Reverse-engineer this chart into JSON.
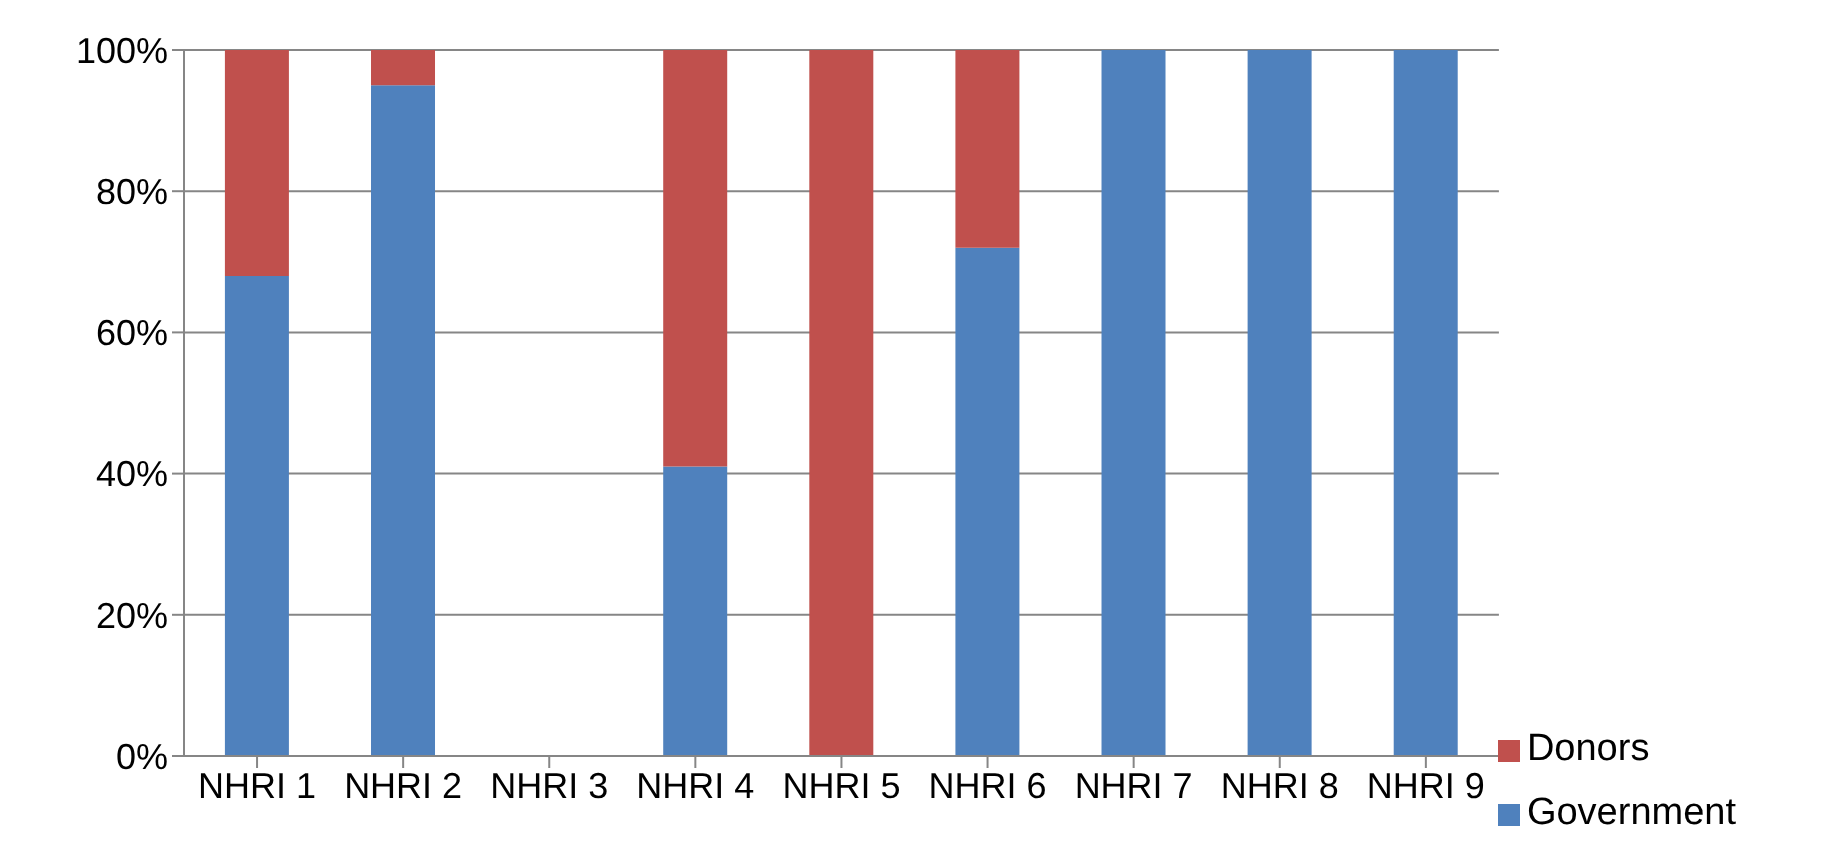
{
  "chart_data": {
    "type": "bar",
    "stacked": true,
    "categories": [
      "NHRI 1",
      "NHRI 2",
      "NHRI 3",
      "NHRI 4",
      "NHRI 5",
      "NHRI 6",
      "NHRI 7",
      "NHRI 8",
      "NHRI 9"
    ],
    "series": [
      {
        "name": "Government",
        "color": "#4f81bd",
        "values": [
          68,
          95,
          null,
          41,
          0,
          72,
          100,
          100,
          100
        ]
      },
      {
        "name": "Donors",
        "color": "#c0504d",
        "values": [
          32,
          5,
          null,
          59,
          100,
          28,
          0,
          0,
          0
        ]
      }
    ],
    "ylim": [
      0,
      100
    ],
    "yticks": [
      {
        "value": 0,
        "label": "0%"
      },
      {
        "value": 20,
        "label": "20%"
      },
      {
        "value": 40,
        "label": "40%"
      },
      {
        "value": 60,
        "label": "60%"
      },
      {
        "value": 80,
        "label": "80%"
      },
      {
        "value": 100,
        "label": "100%"
      }
    ],
    "grid": "y",
    "legend": "bottom right"
  }
}
